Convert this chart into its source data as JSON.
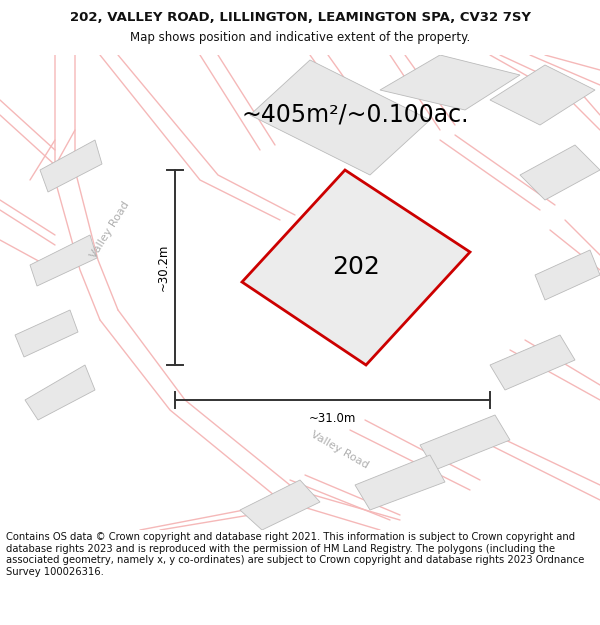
{
  "title_line1": "202, VALLEY ROAD, LILLINGTON, LEAMINGTON SPA, CV32 7SY",
  "title_line2": "Map shows position and indicative extent of the property.",
  "area_label": "~405m²/~0.100ac.",
  "property_number": "202",
  "dim_vertical": "~30.2m",
  "dim_horizontal": "~31.0m",
  "road_label_left": "Valley Road",
  "road_label_bottom": "Valley Road",
  "footer_text": "Contains OS data © Crown copyright and database right 2021. This information is subject to Crown copyright and database rights 2023 and is reproduced with the permission of HM Land Registry. The polygons (including the associated geometry, namely x, y co-ordinates) are subject to Crown copyright and database rights 2023 Ordnance Survey 100026316.",
  "bg_color": "#ffffff",
  "map_bg": "#f7f6f4",
  "building_fill": "#e8e8e8",
  "building_edge": "#bbbbbb",
  "road_line_color": "#f5b8b8",
  "property_fill": "#ececec",
  "property_edge": "#cc0000",
  "dim_line_color": "#333333",
  "title_fontsize": 9.5,
  "subtitle_fontsize": 8.5,
  "area_fontsize": 17,
  "number_fontsize": 18,
  "dim_fontsize": 8.5,
  "road_fontsize": 8,
  "footer_fontsize": 7.2
}
